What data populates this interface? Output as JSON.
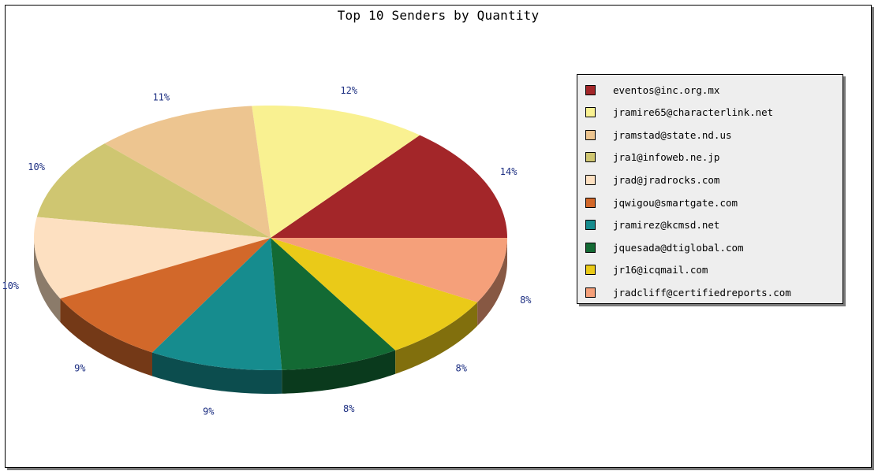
{
  "chart_data": {
    "type": "pie",
    "title": "Top 10 Senders by Quantity",
    "legend_position": "right",
    "slices": [
      {
        "label": "eventos@inc.org.mx",
        "value": 14,
        "display": "14%",
        "color": "#a32629"
      },
      {
        "label": "jramire65@characterlink.net",
        "value": 12,
        "display": "12%",
        "color": "#f9f191"
      },
      {
        "label": "jramstad@state.nd.us",
        "value": 11,
        "display": "11%",
        "color": "#edc590"
      },
      {
        "label": "jra1@infoweb.ne.jp",
        "value": 10,
        "display": "10%",
        "color": "#cfc671"
      },
      {
        "label": "jrad@jradrocks.com",
        "value": 10,
        "display": "10%",
        "color": "#fde0c1"
      },
      {
        "label": "jqwigou@smartgate.com",
        "value": 9,
        "display": "9%",
        "color": "#d2682a"
      },
      {
        "label": "jramirez@kcmsd.net",
        "value": 9,
        "display": "9%",
        "color": "#168c8e"
      },
      {
        "label": "jquesada@dtiglobal.com",
        "value": 8,
        "display": "8%",
        "color": "#136a34"
      },
      {
        "label": "jr16@icqmail.com",
        "value": 8,
        "display": "8%",
        "color": "#eaca18"
      },
      {
        "label": "jradcliff@certifiedreports.com",
        "value": 8,
        "display": "8%",
        "color": "#f5a07a"
      }
    ]
  }
}
